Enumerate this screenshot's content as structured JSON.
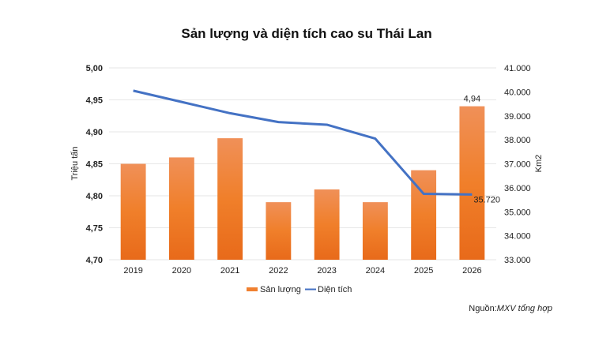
{
  "chart_data": {
    "type": "bar+line",
    "title": "Sản lượng và diện tích cao su Thái Lan",
    "categories": [
      "2019",
      "2020",
      "2021",
      "2022",
      "2023",
      "2024",
      "2025",
      "2026"
    ],
    "series": [
      {
        "name": "Sản lượng",
        "type": "bar",
        "axis": "left",
        "color": "#F08030",
        "values": [
          4.85,
          4.86,
          4.89,
          4.79,
          4.81,
          4.79,
          4.84,
          4.94
        ]
      },
      {
        "name": "Diện tích",
        "type": "line",
        "axis": "right",
        "color": "#4472C4",
        "values": [
          40050,
          39580,
          39110,
          38740,
          38630,
          38050,
          35750,
          35720
        ]
      }
    ],
    "data_labels": [
      {
        "series": "Sản lượng",
        "category": "2026",
        "text": "4,94"
      },
      {
        "series": "Diện tích",
        "category": "2026",
        "text": "35.720"
      }
    ],
    "ylabel": "Triệu tấn",
    "y2label": "Km2",
    "ylim": [
      4.7,
      5.0
    ],
    "y2lim": [
      33000,
      41000
    ],
    "yticks": [
      "4,70",
      "4,75",
      "4,80",
      "4,85",
      "4,90",
      "4,95",
      "5,00"
    ],
    "y2ticks": [
      "33.000",
      "34.000",
      "35.000",
      "36.000",
      "37.000",
      "38.000",
      "39.000",
      "40.000",
      "41.000"
    ],
    "grid": true,
    "legend": "bottom"
  },
  "source": {
    "prefix": "Nguồn:",
    "text": "MXV tổng hợp"
  }
}
